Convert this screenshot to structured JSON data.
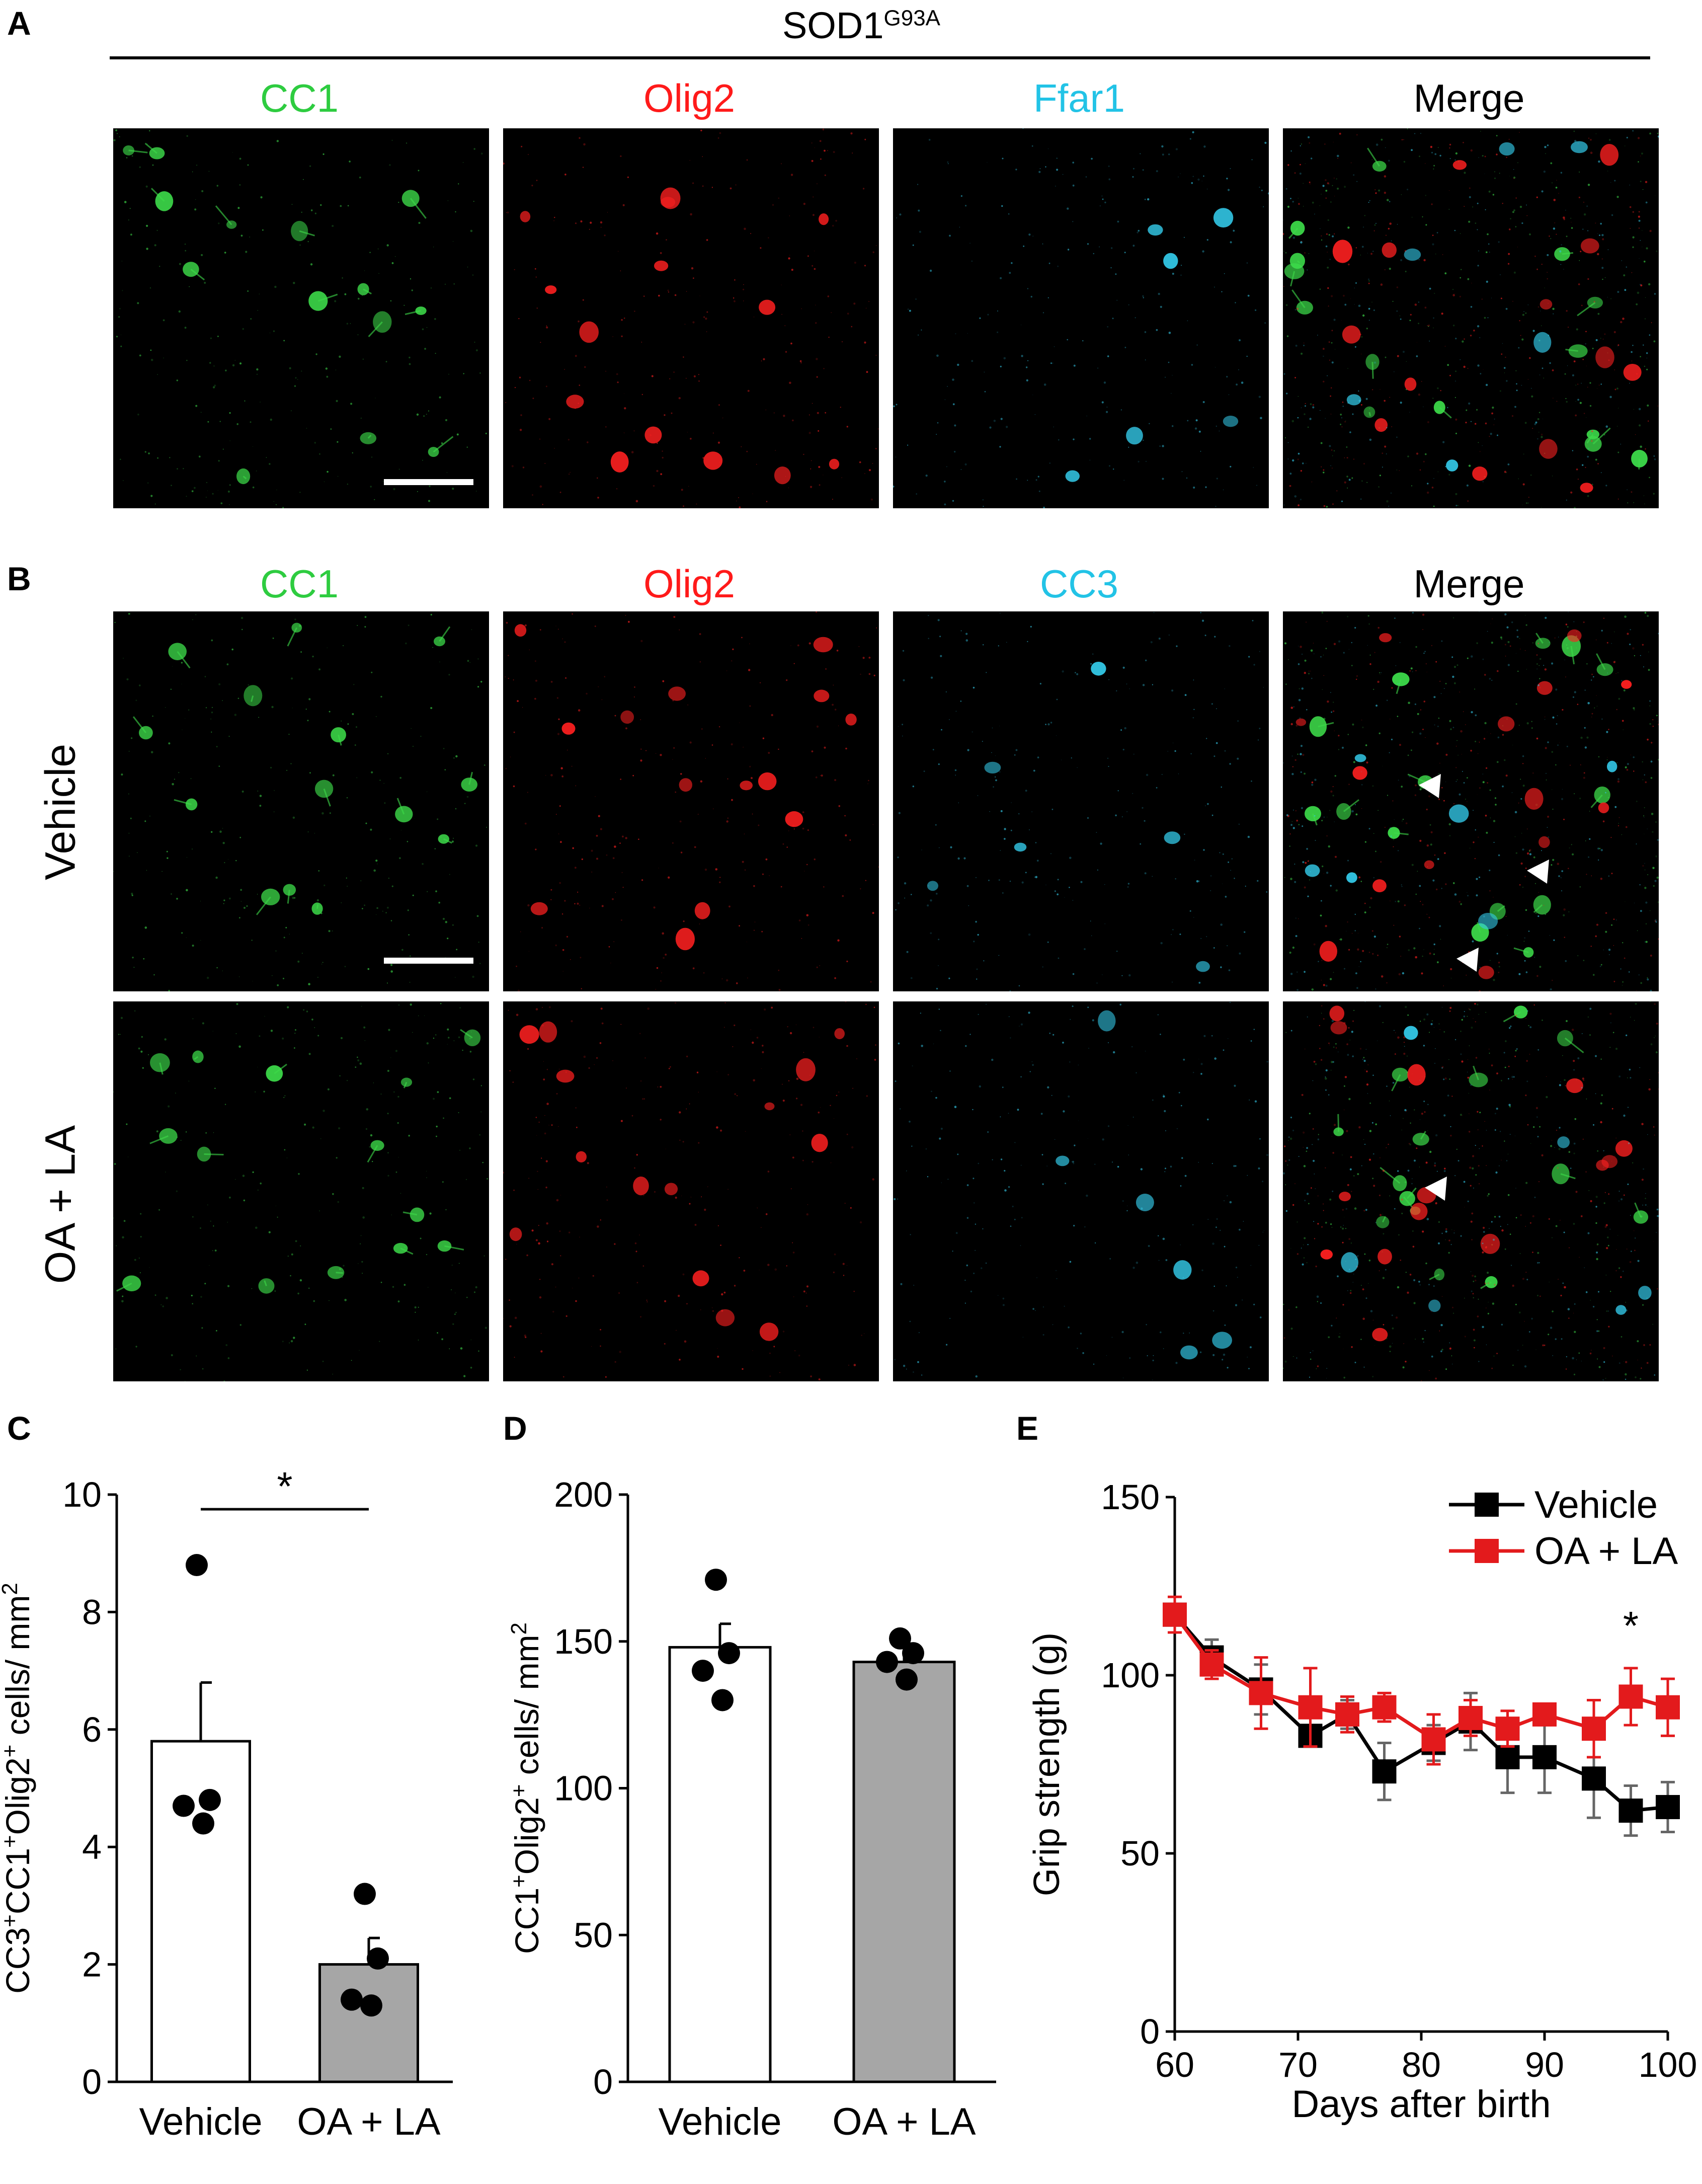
{
  "panel_letters": {
    "a": "A",
    "b": "B",
    "c": "C",
    "d": "D",
    "e": "E"
  },
  "section_a": {
    "header_main": "SOD1",
    "header_sup": "G93A",
    "channels": [
      {
        "label": "CC1",
        "color": "#2ecc40"
      },
      {
        "label": "Olig2",
        "color": "#ff1a1a"
      },
      {
        "label": "Ffar1",
        "color": "#22c3e6"
      },
      {
        "label": "Merge",
        "color": "#000000"
      }
    ]
  },
  "section_b": {
    "channels": [
      {
        "label": "CC1",
        "color": "#2ecc40"
      },
      {
        "label": "Olig2",
        "color": "#ff1a1a"
      },
      {
        "label": "CC3",
        "color": "#22c3e6"
      },
      {
        "label": "Merge",
        "color": "#000000"
      }
    ],
    "rows": [
      "Vehicle",
      "OA + LA"
    ]
  },
  "chart_data": [
    {
      "id": "C",
      "type": "bar",
      "categories": [
        "Vehicle",
        "OA + LA"
      ],
      "values": [
        5.8,
        2.0
      ],
      "errors": [
        1.0,
        0.45
      ],
      "points": [
        [
          8.8,
          4.8,
          4.7,
          4.4
        ],
        [
          3.2,
          2.1,
          1.4,
          1.3
        ]
      ],
      "bar_colors": [
        "#ffffff",
        "#a6a6a6"
      ],
      "ylabel_parts": [
        "CC3",
        "+",
        "CC1",
        "+",
        "Olig2",
        "+",
        " cells/ mm",
        "2"
      ],
      "ylim": [
        0,
        10
      ],
      "yticks": [
        0,
        2,
        4,
        6,
        8,
        10
      ],
      "significance": "*"
    },
    {
      "id": "D",
      "type": "bar",
      "categories": [
        "Vehicle",
        "OA + LA"
      ],
      "values": [
        148,
        143
      ],
      "errors": [
        8,
        3
      ],
      "points": [
        [
          171,
          146,
          140,
          130
        ],
        [
          151,
          146,
          143,
          137
        ]
      ],
      "bar_colors": [
        "#ffffff",
        "#a6a6a6"
      ],
      "ylabel_parts": [
        "CC1",
        "+",
        "Olig2",
        "+",
        " cells/ mm",
        "2"
      ],
      "ylim": [
        0,
        200
      ],
      "yticks": [
        0,
        50,
        100,
        150,
        200
      ]
    },
    {
      "id": "E",
      "type": "line",
      "xlabel": "Days after birth",
      "ylabel": "Grip strength (g)",
      "xlim": [
        60,
        100
      ],
      "ylim": [
        0,
        150
      ],
      "xticks": [
        60,
        70,
        80,
        90,
        100
      ],
      "yticks": [
        0,
        50,
        100,
        150
      ],
      "x": [
        60,
        63,
        67,
        71,
        74,
        77,
        81,
        84,
        87,
        90,
        94,
        97,
        100
      ],
      "series": [
        {
          "name": "Vehicle",
          "color": "#000000",
          "values": [
            117,
            105,
            96,
            83,
            89,
            73,
            81,
            87,
            77,
            77,
            71,
            62,
            63
          ],
          "errors": [
            3,
            5,
            7,
            3,
            4,
            8,
            5,
            8,
            10,
            10,
            11,
            7,
            7
          ]
        },
        {
          "name": "OA + LA",
          "color": "#e31a1c",
          "values": [
            117,
            103,
            95,
            91,
            89,
            91,
            82,
            88,
            85,
            89,
            85,
            94,
            91
          ],
          "errors": [
            5,
            4,
            10,
            11,
            5,
            4,
            7,
            5,
            5,
            3,
            8,
            8,
            8
          ]
        }
      ],
      "annotation": {
        "x": 97,
        "text": "*"
      }
    }
  ]
}
